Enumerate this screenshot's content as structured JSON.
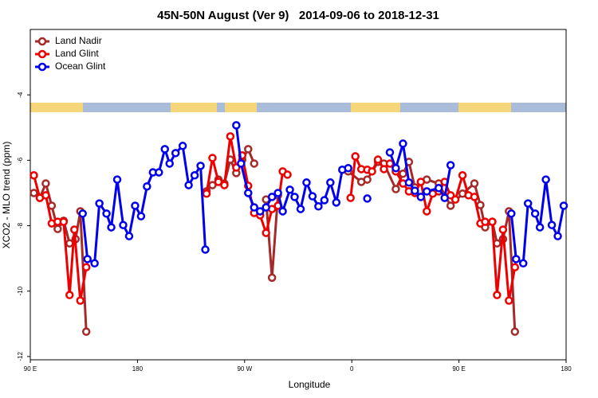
{
  "chart_data": {
    "type": "line",
    "title": "45N-50N August (Ver 9)   2014-09-06 to 2018-12-31",
    "x_label": "Longitude",
    "y_label": "XCO2 - MLO trend (ppm)",
    "xlim": [
      90,
      540
    ],
    "xticks": [
      {
        "value": 90,
        "label": "90 E"
      },
      180,
      {
        "value": 270,
        "label": "90 W"
      },
      {
        "value": 360,
        "label": "0"
      },
      {
        "value": 450,
        "label": "90 E"
      },
      {
        "value": 540,
        "label": "180"
      }
    ],
    "ylim": [
      -12.1,
      -2
    ],
    "yticks": [
      -4,
      -6,
      -8,
      -10,
      -12
    ],
    "legend": "top-left",
    "series": [
      {
        "name": "Land Nadir",
        "color": "#a52a2a",
        "x": [
          93,
          98,
          103,
          108,
          113,
          118,
          123,
          128,
          132,
          137,
          null,
          238,
          243,
          248,
          253,
          258,
          263,
          268,
          273,
          278,
          null,
          288,
          293,
          298,
          null,
          357,
          368,
          373,
          382,
          387,
          397,
          403,
          408,
          413,
          423,
          433,
          443,
          453,
          463,
          468,
          472,
          478,
          482,
          487,
          492,
          497
        ],
        "values": [
          -7.0,
          -7.15,
          -6.71,
          -7.39,
          -8.1,
          -7.85,
          -8.54,
          -8.41,
          -7.56,
          -11.24,
          null,
          -6.95,
          -6.76,
          -6.59,
          -6.71,
          -5.98,
          -6.39,
          -5.98,
          -5.66,
          -6.1,
          null,
          -7.2,
          -9.59,
          -7.07,
          null,
          -6.34,
          -6.66,
          -6.59,
          -6.05,
          -6.1,
          -6.88,
          -6.41,
          -6.05,
          -6.83,
          -6.59,
          -6.71,
          -7.39,
          -7.02,
          -6.71,
          -7.37,
          -8.05,
          -7.88,
          -8.54,
          -8.41,
          -7.56,
          -11.24
        ]
      },
      {
        "name": "Land Glint",
        "color": "#ee0000",
        "x": [
          93,
          98,
          103,
          108,
          113,
          118,
          123,
          127,
          132,
          137,
          null,
          238,
          243,
          248,
          253,
          258,
          263,
          268,
          273,
          278,
          283,
          288,
          293,
          298,
          302,
          306,
          null,
          359,
          363,
          368,
          373,
          377,
          382,
          387,
          392,
          397,
          403,
          408,
          413,
          418,
          423,
          428,
          433,
          438,
          443,
          447,
          453,
          458,
          463,
          468,
          472,
          478,
          482,
          487,
          492,
          497
        ],
        "values": [
          -6.46,
          -7.15,
          -7.07,
          -7.93,
          -7.88,
          -7.88,
          -10.12,
          -8.12,
          -10.29,
          -9.27,
          null,
          -7.02,
          -5.93,
          -6.66,
          -6.76,
          -5.27,
          -6.22,
          -5.85,
          -6.78,
          -7.61,
          -7.68,
          -8.22,
          -7.49,
          -7.39,
          -6.34,
          -6.44,
          null,
          -7.15,
          -5.88,
          -6.27,
          -6.29,
          -6.34,
          -5.98,
          -6.27,
          -6.1,
          -6.34,
          -6.71,
          -6.95,
          -7.0,
          -6.66,
          -7.56,
          -7.02,
          -6.95,
          -6.66,
          -7.07,
          -7.2,
          -6.46,
          -7.07,
          -7.12,
          -7.93,
          -7.88,
          -7.88,
          -10.12,
          -8.12,
          -10.29,
          -9.27
        ]
      },
      {
        "name": "Ocean Glint",
        "color": "#0000ee",
        "x": [
          134,
          138,
          144,
          148,
          154,
          158,
          163,
          168,
          173,
          178,
          183,
          188,
          193,
          198,
          203,
          207,
          212,
          218,
          223,
          228,
          233,
          237,
          null,
          263,
          267,
          273,
          278,
          283,
          288,
          293,
          298,
          302,
          308,
          312,
          317,
          322,
          327,
          332,
          337,
          342,
          347,
          352,
          357,
          null,
          373,
          null,
          392,
          397,
          403,
          408,
          413,
          418,
          423,
          433,
          438,
          443,
          null,
          494,
          498,
          504,
          508,
          514,
          518,
          523,
          528,
          533,
          538
        ],
        "values": [
          -7.63,
          -9.02,
          -9.15,
          -7.32,
          -7.63,
          -8.05,
          -6.59,
          -7.98,
          -8.32,
          -7.39,
          -7.71,
          -6.8,
          -6.37,
          -6.37,
          -5.66,
          -6.1,
          -5.78,
          -5.56,
          -6.76,
          -6.46,
          -6.17,
          -8.73,
          null,
          -4.93,
          -6.1,
          -7.0,
          -7.44,
          -7.56,
          -7.44,
          -7.12,
          -7.0,
          -7.56,
          -6.9,
          -7.12,
          -7.49,
          -6.68,
          -7.1,
          -7.41,
          -7.22,
          -6.68,
          -7.29,
          -6.29,
          -6.24,
          null,
          -7.17,
          null,
          -5.76,
          -6.24,
          -5.49,
          -6.68,
          -6.93,
          -7.12,
          -6.95,
          -6.85,
          -7.15,
          -6.15,
          null,
          -7.63,
          -9.02,
          -9.15,
          -7.32,
          -7.63,
          -8.05,
          -6.59,
          -7.98,
          -8.32,
          -7.39
        ]
      }
    ]
  }
}
